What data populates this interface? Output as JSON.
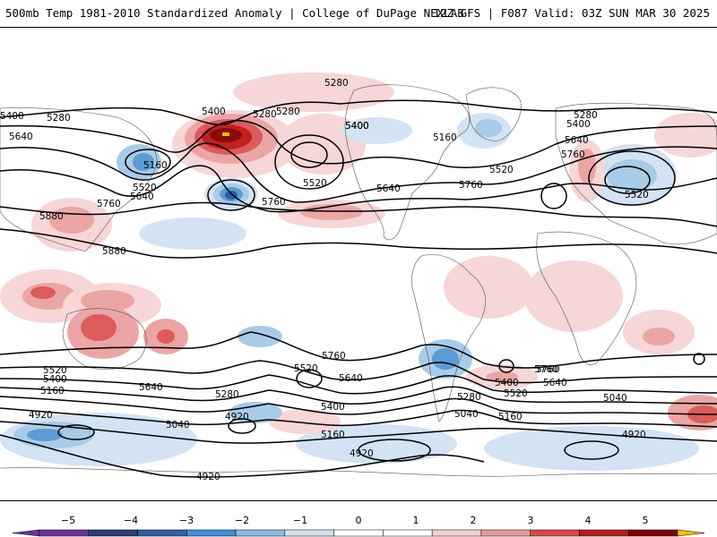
{
  "header": {
    "title_left": "500mb Temp 1981-2010 Standardized Anomaly | College of DuPage NEXLAB",
    "title_right": "12Z GFS | F087 Valid: 03Z SUN MAR 30 2025"
  },
  "map": {
    "contour_labels": [
      "5280",
      "5400",
      "5280",
      "5640",
      "5400",
      "5280",
      "5160",
      "5520",
      "5640",
      "5760",
      "5880",
      "5880",
      "5400",
      "5280",
      "5400",
      "5520",
      "5760",
      "5640",
      "5160",
      "5520",
      "5760",
      "5280",
      "5400",
      "5640",
      "5760",
      "5520",
      "5760",
      "5520",
      "5400",
      "5160",
      "4920",
      "5640",
      "5280",
      "5040",
      "4920",
      "5520",
      "5640",
      "5400",
      "5160",
      "4920",
      "5760",
      "5280",
      "5040",
      "5160",
      "5400",
      "5520",
      "5640",
      "5760",
      "5040",
      "4920"
    ],
    "colors": {
      "pos1": "#f6d6d6",
      "pos2": "#eba5a5",
      "pos3": "#dc5c5c",
      "pos4": "#c32020",
      "pos5": "#8c0a0a",
      "neg1": "#d3e3f3",
      "neg2": "#a8cbe8",
      "neg3": "#5b9bd5",
      "neg4": "#2b5fa8",
      "neg5": "#1a2a6a",
      "land_outline": "#555555",
      "contour": "#000000"
    }
  },
  "colorbar": {
    "ticks": [
      "−5",
      "−4",
      "−3",
      "−2",
      "−1",
      "0",
      "1",
      "2",
      "3",
      "4",
      "5"
    ],
    "segment_colors": [
      "#7030a0",
      "#2b3a7a",
      "#2f5fa8",
      "#3d8fd5",
      "#8dbbe3",
      "#cfe2f3",
      "#ffffff",
      "#ffffff",
      "#f6d0d0",
      "#e99a9a",
      "#d94848",
      "#b81c1c",
      "#800000"
    ],
    "end_left_color": "#7030a0",
    "end_right_color": "#f5c000"
  }
}
